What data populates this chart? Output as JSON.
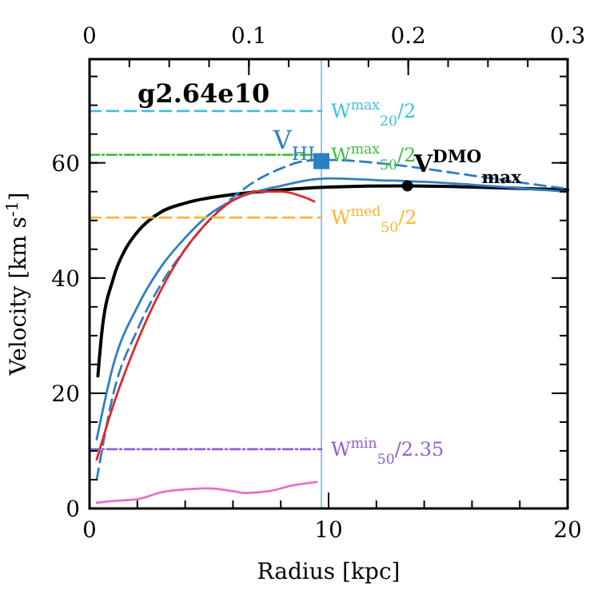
{
  "chart_data": {
    "type": "line",
    "xlabel": "Radius [kpc]",
    "ylabel": "Velocity [km s$^{-1}$]",
    "xlim": [
      0,
      20
    ],
    "xticks": [
      0,
      10,
      20
    ],
    "ylim": [
      0,
      78
    ],
    "yticks": [
      0,
      20,
      40,
      60
    ],
    "x2lim": [
      0,
      0.3
    ],
    "x2ticks": [
      0,
      0.1,
      0.2,
      0.3
    ],
    "annotations": [
      "g2.64e10"
    ],
    "ref_lines": [
      {
        "axis": "x",
        "value": 9.7,
        "color": "#8cc6ea",
        "line_style": "solid"
      }
    ],
    "series": [
      {
        "type": "line",
        "color": "#000000",
        "line_style": "solid",
        "x": [
          0.35,
          0.5,
          1,
          1.5,
          2,
          3,
          4,
          6,
          8,
          10,
          13.3,
          16,
          20
        ],
        "values": [
          23,
          30,
          40,
          45,
          48,
          51.5,
          53,
          54.5,
          55.3,
          55.8,
          56,
          55.8,
          55.3
        ]
      },
      {
        "type": "line",
        "color": "#2e7fc2",
        "line_style": "solid",
        "x": [
          0.3,
          1,
          2,
          3,
          4,
          5,
          6,
          8,
          10,
          12,
          14,
          16,
          20
        ],
        "values": [
          12,
          25,
          35,
          42,
          47,
          51,
          53.5,
          56,
          57.3,
          57,
          56.7,
          56.2,
          55
        ]
      },
      {
        "type": "line",
        "color": "#2e7fc2",
        "line_style": "dashed",
        "x": [
          0.3,
          1,
          2,
          3,
          4,
          5,
          6,
          7,
          8,
          9,
          10,
          12,
          14,
          16,
          18,
          20
        ],
        "values": [
          5,
          20,
          31,
          39,
          45,
          50,
          54,
          57,
          59,
          60.3,
          60.5,
          60,
          59,
          57.8,
          56.6,
          55.5
        ]
      },
      {
        "type": "line",
        "color": "#e0292b",
        "line_style": "solid",
        "x": [
          0.3,
          1,
          2,
          3,
          4,
          5,
          6,
          7,
          8,
          9,
          9.4
        ],
        "values": [
          8.5,
          18,
          29,
          38,
          45,
          50,
          53.5,
          55,
          55,
          54,
          53.3
        ]
      },
      {
        "type": "line",
        "color": "#e870c8",
        "line_style": "solid",
        "x": [
          0.3,
          1,
          2,
          3,
          4,
          5,
          6,
          6.5,
          7.5,
          8.5,
          9.5
        ],
        "values": [
          1,
          1.3,
          1.6,
          2.8,
          3.3,
          3.5,
          3,
          2.7,
          3,
          4,
          4.6
        ]
      },
      {
        "type": "line",
        "name": "W$^{max}$$_{20}$/2",
        "color": "#40c0e0",
        "line_style": "dashed",
        "x": [
          0,
          9.7
        ],
        "values": [
          69,
          69
        ]
      },
      {
        "type": "line",
        "name": "W$^{max}$$_{50}$/2",
        "color": "#40c040",
        "line_style": "dotted",
        "x": [
          0,
          9.7
        ],
        "values": [
          61.4,
          61.4
        ]
      },
      {
        "type": "line",
        "name": "W$^{med}$$_{50}$/2",
        "color": "#f5b830",
        "line_style": "dashed",
        "x": [
          0,
          9.7
        ],
        "values": [
          50.5,
          50.5
        ]
      },
      {
        "type": "line",
        "name": "W$^{min}$$_{50}$/2.35",
        "color": "#9060d0",
        "line_style": "dotted",
        "x": [
          0,
          9.7
        ],
        "values": [
          10.3,
          10.3
        ]
      },
      {
        "type": "scatter",
        "name": "V$_{HI}$",
        "marker": "square",
        "color": "#2e7fc2",
        "x": [
          9.7
        ],
        "values": [
          60.3
        ]
      },
      {
        "type": "scatter",
        "name": "V$^{DMO}$$_{max}$",
        "marker": "circle",
        "color": "#000000",
        "x": [
          13.3
        ],
        "values": [
          56
        ]
      }
    ]
  }
}
